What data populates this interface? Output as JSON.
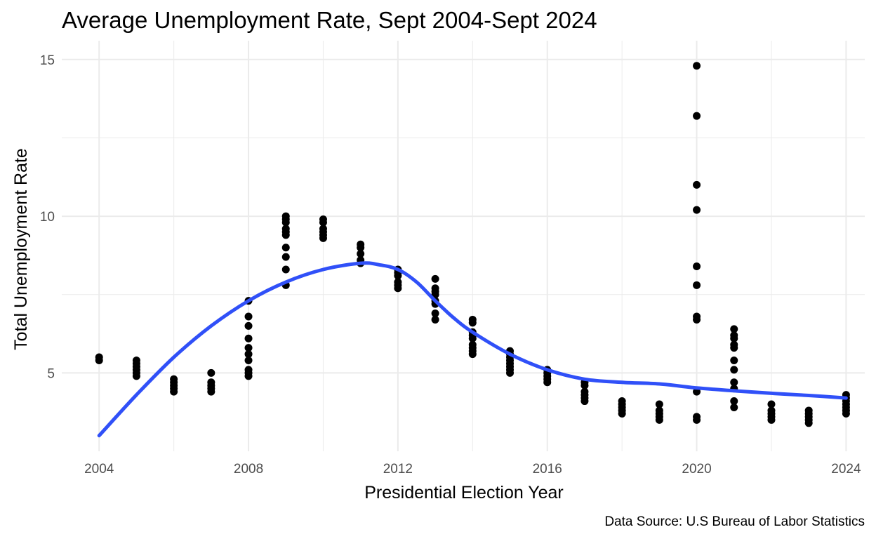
{
  "chart_data": {
    "type": "scatter",
    "title": "Average Unemployment Rate, Sept 2004-Sept 2024",
    "xlabel": "Presidential Election Year",
    "ylabel": "Total Unemployment Rate",
    "caption": "Data Source: U.S Bureau of Labor Statistics",
    "xlim": [
      2003,
      2024.5
    ],
    "ylim": [
      2.5,
      15.6
    ],
    "x_ticks": [
      2004,
      2008,
      2012,
      2016,
      2020,
      2024
    ],
    "x_tick_labels": [
      "2004",
      "2008",
      "2012",
      "2016",
      "2020",
      "2024"
    ],
    "x_minor_ticks": [
      2006,
      2010,
      2014,
      2018,
      2022
    ],
    "y_ticks": [
      5,
      10,
      15
    ],
    "y_tick_labels": [
      "5",
      "10",
      "15"
    ],
    "y_minor_ticks": [
      7.5,
      12.5
    ],
    "grid": true,
    "legend": "none",
    "colors": {
      "points": "#000000",
      "smooth": "#3050f8",
      "grid": "#ebebeb",
      "background": "#ffffff"
    },
    "points": [
      {
        "year": 2004,
        "values": [
          5.4,
          5.5
        ]
      },
      {
        "year": 2005,
        "values": [
          4.9,
          5.0,
          5.1,
          5.2,
          5.3,
          5.4
        ]
      },
      {
        "year": 2006,
        "values": [
          4.4,
          4.5,
          4.6,
          4.7,
          4.8
        ]
      },
      {
        "year": 2007,
        "values": [
          4.4,
          4.5,
          4.6,
          4.7,
          5.0
        ]
      },
      {
        "year": 2008,
        "values": [
          4.9,
          5.0,
          5.1,
          5.4,
          5.6,
          5.8,
          6.1,
          6.5,
          6.8,
          7.3
        ]
      },
      {
        "year": 2009,
        "values": [
          7.8,
          8.3,
          8.7,
          9.0,
          9.4,
          9.5,
          9.6,
          9.8,
          9.9,
          10.0
        ]
      },
      {
        "year": 2010,
        "values": [
          9.3,
          9.4,
          9.5,
          9.6,
          9.8,
          9.9
        ]
      },
      {
        "year": 2011,
        "values": [
          8.5,
          8.6,
          8.8,
          9.0,
          9.1
        ]
      },
      {
        "year": 2012,
        "values": [
          7.7,
          7.8,
          7.9,
          8.1,
          8.2,
          8.3
        ]
      },
      {
        "year": 2013,
        "values": [
          6.7,
          6.9,
          7.2,
          7.3,
          7.5,
          7.6,
          7.7,
          8.0
        ]
      },
      {
        "year": 2014,
        "values": [
          5.6,
          5.7,
          5.8,
          5.9,
          6.1,
          6.2,
          6.3,
          6.6,
          6.7
        ]
      },
      {
        "year": 2015,
        "values": [
          5.0,
          5.1,
          5.2,
          5.3,
          5.4,
          5.5,
          5.6,
          5.7
        ]
      },
      {
        "year": 2016,
        "values": [
          4.7,
          4.8,
          4.9,
          5.0,
          5.1
        ]
      },
      {
        "year": 2017,
        "values": [
          4.1,
          4.2,
          4.3,
          4.4,
          4.6,
          4.7
        ]
      },
      {
        "year": 2018,
        "values": [
          3.7,
          3.8,
          3.9,
          4.0,
          4.1
        ]
      },
      {
        "year": 2019,
        "values": [
          3.5,
          3.6,
          3.7,
          3.8,
          4.0
        ]
      },
      {
        "year": 2020,
        "values": [
          3.5,
          3.6,
          4.4,
          6.7,
          6.8,
          7.8,
          8.4,
          10.2,
          11.0,
          13.2,
          14.8
        ]
      },
      {
        "year": 2021,
        "values": [
          3.9,
          4.1,
          4.5,
          4.7,
          5.1,
          5.4,
          5.8,
          5.9,
          6.1,
          6.2,
          6.4
        ]
      },
      {
        "year": 2022,
        "values": [
          3.5,
          3.6,
          3.7,
          3.8,
          4.0
        ]
      },
      {
        "year": 2023,
        "values": [
          3.4,
          3.5,
          3.6,
          3.7,
          3.8
        ]
      },
      {
        "year": 2024,
        "values": [
          3.7,
          3.8,
          3.9,
          4.0,
          4.1,
          4.2,
          4.3
        ]
      }
    ],
    "smooth_line": {
      "x": [
        2004,
        2005,
        2006,
        2007,
        2008,
        2009,
        2010,
        2011,
        2011.5,
        2012,
        2012.5,
        2013,
        2013.5,
        2014,
        2015,
        2016,
        2017,
        2018,
        2019,
        2020,
        2021,
        2022,
        2023,
        2024
      ],
      "y": [
        3.0,
        4.3,
        5.5,
        6.5,
        7.3,
        7.9,
        8.3,
        8.5,
        8.45,
        8.3,
        7.9,
        7.3,
        6.75,
        6.3,
        5.6,
        5.1,
        4.8,
        4.7,
        4.65,
        4.52,
        4.43,
        4.35,
        4.28,
        4.2
      ]
    }
  }
}
